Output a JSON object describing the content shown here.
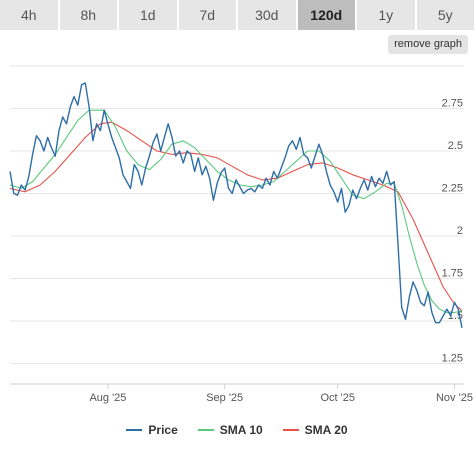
{
  "tabs": [
    {
      "label": "4h",
      "active": false
    },
    {
      "label": "8h",
      "active": false
    },
    {
      "label": "1d",
      "active": false
    },
    {
      "label": "7d",
      "active": false
    },
    {
      "label": "30d",
      "active": false
    },
    {
      "label": "120d",
      "active": true
    },
    {
      "label": "1y",
      "active": false
    },
    {
      "label": "5y",
      "active": false
    }
  ],
  "remove_graph_label": "remove graph",
  "chart_data": {
    "type": "line",
    "x_range": [
      "2025-07-06",
      "2025-11-03"
    ],
    "x_ticks": [
      {
        "date": "2025-08-01",
        "label": "Aug '25"
      },
      {
        "date": "2025-09-01",
        "label": "Sep '25"
      },
      {
        "date": "2025-10-01",
        "label": "Oct '25"
      },
      {
        "date": "2025-11-01",
        "label": "Nov '25"
      }
    ],
    "ylim": [
      1.2,
      3.0
    ],
    "y_ticks": [
      1.25,
      1.5,
      1.75,
      2,
      2.25,
      2.5,
      2.75
    ],
    "y_tick_labels": [
      "1.25",
      "1.5",
      "1.75",
      "2",
      "2.25",
      "2.5",
      "2.75"
    ],
    "grid": true,
    "legend_position": "bottom",
    "series": [
      {
        "name": "Price",
        "color": "#2e6ea6",
        "points": [
          [
            "2025-07-06",
            2.38
          ],
          [
            "2025-07-07",
            2.25
          ],
          [
            "2025-07-08",
            2.24
          ],
          [
            "2025-07-09",
            2.3
          ],
          [
            "2025-07-10",
            2.27
          ],
          [
            "2025-07-11",
            2.35
          ],
          [
            "2025-07-12",
            2.48
          ],
          [
            "2025-07-13",
            2.59
          ],
          [
            "2025-07-14",
            2.56
          ],
          [
            "2025-07-15",
            2.5
          ],
          [
            "2025-07-16",
            2.58
          ],
          [
            "2025-07-17",
            2.52
          ],
          [
            "2025-07-18",
            2.47
          ],
          [
            "2025-07-19",
            2.62
          ],
          [
            "2025-07-20",
            2.7
          ],
          [
            "2025-07-21",
            2.66
          ],
          [
            "2025-07-22",
            2.76
          ],
          [
            "2025-07-23",
            2.82
          ],
          [
            "2025-07-24",
            2.77
          ],
          [
            "2025-07-25",
            2.89
          ],
          [
            "2025-07-26",
            2.9
          ],
          [
            "2025-07-27",
            2.76
          ],
          [
            "2025-07-28",
            2.56
          ],
          [
            "2025-07-29",
            2.66
          ],
          [
            "2025-07-30",
            2.62
          ],
          [
            "2025-07-31",
            2.74
          ],
          [
            "2025-08-01",
            2.66
          ],
          [
            "2025-08-02",
            2.58
          ],
          [
            "2025-08-03",
            2.52
          ],
          [
            "2025-08-04",
            2.46
          ],
          [
            "2025-08-05",
            2.36
          ],
          [
            "2025-08-06",
            2.32
          ],
          [
            "2025-08-07",
            2.28
          ],
          [
            "2025-08-08",
            2.42
          ],
          [
            "2025-08-09",
            2.38
          ],
          [
            "2025-08-10",
            2.3
          ],
          [
            "2025-08-11",
            2.4
          ],
          [
            "2025-08-12",
            2.47
          ],
          [
            "2025-08-13",
            2.55
          ],
          [
            "2025-08-14",
            2.6
          ],
          [
            "2025-08-15",
            2.5
          ],
          [
            "2025-08-16",
            2.58
          ],
          [
            "2025-08-17",
            2.66
          ],
          [
            "2025-08-18",
            2.58
          ],
          [
            "2025-08-19",
            2.47
          ],
          [
            "2025-08-20",
            2.5
          ],
          [
            "2025-08-21",
            2.43
          ],
          [
            "2025-08-22",
            2.5
          ],
          [
            "2025-08-23",
            2.48
          ],
          [
            "2025-08-24",
            2.38
          ],
          [
            "2025-08-25",
            2.46
          ],
          [
            "2025-08-26",
            2.36
          ],
          [
            "2025-08-27",
            2.41
          ],
          [
            "2025-08-28",
            2.34
          ],
          [
            "2025-08-29",
            2.21
          ],
          [
            "2025-08-30",
            2.31
          ],
          [
            "2025-08-31",
            2.37
          ],
          [
            "2025-09-01",
            2.4
          ],
          [
            "2025-09-02",
            2.28
          ],
          [
            "2025-09-03",
            2.25
          ],
          [
            "2025-09-04",
            2.33
          ],
          [
            "2025-09-05",
            2.29
          ],
          [
            "2025-09-06",
            2.25
          ],
          [
            "2025-09-07",
            2.27
          ],
          [
            "2025-09-08",
            2.28
          ],
          [
            "2025-09-09",
            2.26
          ],
          [
            "2025-09-10",
            2.3
          ],
          [
            "2025-09-11",
            2.28
          ],
          [
            "2025-09-12",
            2.34
          ],
          [
            "2025-09-13",
            2.3
          ],
          [
            "2025-09-14",
            2.38
          ],
          [
            "2025-09-15",
            2.34
          ],
          [
            "2025-09-16",
            2.4
          ],
          [
            "2025-09-17",
            2.46
          ],
          [
            "2025-09-18",
            2.53
          ],
          [
            "2025-09-19",
            2.56
          ],
          [
            "2025-09-20",
            2.51
          ],
          [
            "2025-09-21",
            2.58
          ],
          [
            "2025-09-22",
            2.48
          ],
          [
            "2025-09-23",
            2.46
          ],
          [
            "2025-09-24",
            2.4
          ],
          [
            "2025-09-25",
            2.47
          ],
          [
            "2025-09-26",
            2.54
          ],
          [
            "2025-09-27",
            2.48
          ],
          [
            "2025-09-28",
            2.38
          ],
          [
            "2025-09-29",
            2.3
          ],
          [
            "2025-09-30",
            2.26
          ],
          [
            "2025-10-01",
            2.2
          ],
          [
            "2025-10-02",
            2.28
          ],
          [
            "2025-10-03",
            2.14
          ],
          [
            "2025-10-04",
            2.18
          ],
          [
            "2025-10-05",
            2.27
          ],
          [
            "2025-10-06",
            2.22
          ],
          [
            "2025-10-07",
            2.28
          ],
          [
            "2025-10-08",
            2.33
          ],
          [
            "2025-10-09",
            2.27
          ],
          [
            "2025-10-10",
            2.35
          ],
          [
            "2025-10-11",
            2.29
          ],
          [
            "2025-10-12",
            2.34
          ],
          [
            "2025-10-13",
            2.31
          ],
          [
            "2025-10-14",
            2.38
          ],
          [
            "2025-10-15",
            2.3
          ],
          [
            "2025-10-16",
            2.32
          ],
          [
            "2025-10-17",
            1.95
          ],
          [
            "2025-10-18",
            1.58
          ],
          [
            "2025-10-19",
            1.51
          ],
          [
            "2025-10-20",
            1.64
          ],
          [
            "2025-10-21",
            1.73
          ],
          [
            "2025-10-22",
            1.68
          ],
          [
            "2025-10-23",
            1.61
          ],
          [
            "2025-10-24",
            1.59
          ],
          [
            "2025-10-25",
            1.67
          ],
          [
            "2025-10-26",
            1.55
          ],
          [
            "2025-10-27",
            1.49
          ],
          [
            "2025-10-28",
            1.49
          ],
          [
            "2025-10-29",
            1.53
          ],
          [
            "2025-10-30",
            1.57
          ],
          [
            "2025-10-31",
            1.53
          ],
          [
            "2025-11-01",
            1.61
          ],
          [
            "2025-11-02",
            1.57
          ],
          [
            "2025-11-03",
            1.46
          ]
        ]
      },
      {
        "name": "SMA 10",
        "color": "#5cc97f",
        "points": [
          [
            "2025-07-06",
            2.3
          ],
          [
            "2025-07-09",
            2.28
          ],
          [
            "2025-07-12",
            2.32
          ],
          [
            "2025-07-15",
            2.4
          ],
          [
            "2025-07-18",
            2.48
          ],
          [
            "2025-07-21",
            2.58
          ],
          [
            "2025-07-24",
            2.68
          ],
          [
            "2025-07-27",
            2.74
          ],
          [
            "2025-07-31",
            2.74
          ],
          [
            "2025-08-03",
            2.64
          ],
          [
            "2025-08-06",
            2.5
          ],
          [
            "2025-08-09",
            2.42
          ],
          [
            "2025-08-12",
            2.39
          ],
          [
            "2025-08-15",
            2.45
          ],
          [
            "2025-08-18",
            2.54
          ],
          [
            "2025-08-21",
            2.56
          ],
          [
            "2025-08-24",
            2.52
          ],
          [
            "2025-08-27",
            2.45
          ],
          [
            "2025-08-30",
            2.38
          ],
          [
            "2025-09-02",
            2.33
          ],
          [
            "2025-09-05",
            2.3
          ],
          [
            "2025-09-08",
            2.29
          ],
          [
            "2025-09-11",
            2.3
          ],
          [
            "2025-09-14",
            2.32
          ],
          [
            "2025-09-17",
            2.38
          ],
          [
            "2025-09-20",
            2.44
          ],
          [
            "2025-09-23",
            2.5
          ],
          [
            "2025-09-26",
            2.5
          ],
          [
            "2025-09-29",
            2.44
          ],
          [
            "2025-10-02",
            2.34
          ],
          [
            "2025-10-05",
            2.24
          ],
          [
            "2025-10-08",
            2.22
          ],
          [
            "2025-10-11",
            2.26
          ],
          [
            "2025-10-14",
            2.31
          ],
          [
            "2025-10-16",
            2.31
          ],
          [
            "2025-10-18",
            2.18
          ],
          [
            "2025-10-20",
            2.0
          ],
          [
            "2025-10-22",
            1.84
          ],
          [
            "2025-10-24",
            1.71
          ],
          [
            "2025-10-26",
            1.62
          ],
          [
            "2025-10-28",
            1.57
          ],
          [
            "2025-10-30",
            1.55
          ],
          [
            "2025-11-01",
            1.55
          ],
          [
            "2025-11-03",
            1.56
          ]
        ]
      },
      {
        "name": "SMA 20",
        "color": "#e8524a",
        "points": [
          [
            "2025-07-06",
            2.28
          ],
          [
            "2025-07-10",
            2.26
          ],
          [
            "2025-07-14",
            2.3
          ],
          [
            "2025-07-18",
            2.38
          ],
          [
            "2025-07-22",
            2.48
          ],
          [
            "2025-07-26",
            2.58
          ],
          [
            "2025-07-30",
            2.66
          ],
          [
            "2025-08-02",
            2.67
          ],
          [
            "2025-08-06",
            2.62
          ],
          [
            "2025-08-10",
            2.56
          ],
          [
            "2025-08-14",
            2.5
          ],
          [
            "2025-08-18",
            2.48
          ],
          [
            "2025-08-22",
            2.49
          ],
          [
            "2025-08-26",
            2.48
          ],
          [
            "2025-08-30",
            2.46
          ],
          [
            "2025-09-03",
            2.41
          ],
          [
            "2025-09-07",
            2.36
          ],
          [
            "2025-09-11",
            2.33
          ],
          [
            "2025-09-15",
            2.34
          ],
          [
            "2025-09-19",
            2.38
          ],
          [
            "2025-09-23",
            2.42
          ],
          [
            "2025-09-27",
            2.43
          ],
          [
            "2025-10-01",
            2.4
          ],
          [
            "2025-10-05",
            2.36
          ],
          [
            "2025-10-09",
            2.33
          ],
          [
            "2025-10-13",
            2.3
          ],
          [
            "2025-10-17",
            2.26
          ],
          [
            "2025-10-21",
            2.1
          ],
          [
            "2025-10-25",
            1.9
          ],
          [
            "2025-10-29",
            1.7
          ],
          [
            "2025-11-01",
            1.6
          ],
          [
            "2025-11-03",
            1.56
          ]
        ]
      }
    ]
  },
  "legend": [
    {
      "label": "Price",
      "color": "#2e6ea6"
    },
    {
      "label": "SMA 10",
      "color": "#5cc97f"
    },
    {
      "label": "SMA 20",
      "color": "#e8524a"
    }
  ]
}
